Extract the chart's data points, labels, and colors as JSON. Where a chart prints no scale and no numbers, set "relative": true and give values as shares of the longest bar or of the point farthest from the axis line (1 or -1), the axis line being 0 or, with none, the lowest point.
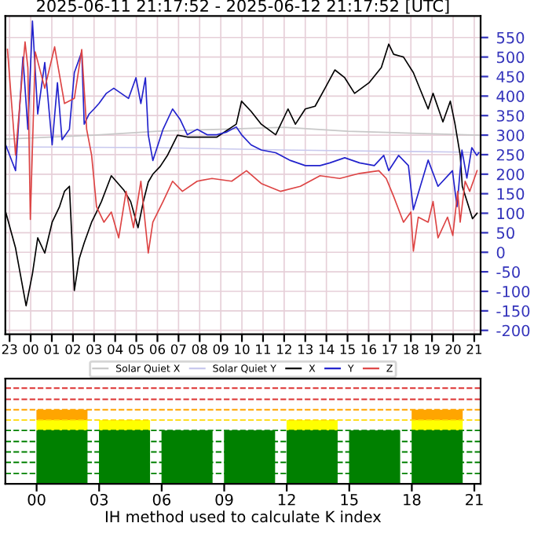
{
  "chart_data": [
    {
      "type": "line",
      "title": "2025-06-11 21:17:52 - 2025-06-12 21:17:52 [UTC]",
      "legend": "bottom",
      "grid": true,
      "xlim": [
        "2025-06-11T22:48",
        "2025-06-12T21:18"
      ],
      "ylim": [
        -210,
        605
      ],
      "xticks": [
        {
          "value": "2025-06-11T23:00",
          "label": "23"
        },
        {
          "value": "2025-06-12T00:00",
          "label": "00"
        },
        {
          "value": "2025-06-12T01:00",
          "label": "01"
        },
        {
          "value": "2025-06-12T02:00",
          "label": "02"
        },
        {
          "value": "2025-06-12T03:00",
          "label": "03"
        },
        {
          "value": "2025-06-12T04:00",
          "label": "04"
        },
        {
          "value": "2025-06-12T05:00",
          "label": "05"
        },
        {
          "value": "2025-06-12T06:00",
          "label": "06"
        },
        {
          "value": "2025-06-12T07:00",
          "label": "07"
        },
        {
          "value": "2025-06-12T08:00",
          "label": "08"
        },
        {
          "value": "2025-06-12T09:00",
          "label": "09"
        },
        {
          "value": "2025-06-12T10:00",
          "label": "10"
        },
        {
          "value": "2025-06-12T11:00",
          "label": "11"
        },
        {
          "value": "2025-06-12T12:00",
          "label": "12"
        },
        {
          "value": "2025-06-12T13:00",
          "label": "13"
        },
        {
          "value": "2025-06-12T14:00",
          "label": "14"
        },
        {
          "value": "2025-06-12T15:00",
          "label": "15"
        },
        {
          "value": "2025-06-12T16:00",
          "label": "16"
        },
        {
          "value": "2025-06-12T17:00",
          "label": "17"
        },
        {
          "value": "2025-06-12T18:00",
          "label": "18"
        },
        {
          "value": "2025-06-12T19:00",
          "label": "19"
        },
        {
          "value": "2025-06-12T20:00",
          "label": "20"
        },
        {
          "value": "2025-06-12T21:00",
          "label": "21"
        }
      ],
      "yticks": [
        -200,
        -150,
        -100,
        -50,
        0,
        50,
        100,
        150,
        200,
        250,
        300,
        350,
        400,
        450,
        500,
        550
      ],
      "series": [
        {
          "name": "Solar Quiet X",
          "color": "#c8c8c8",
          "x": [
            "2025-06-11T22:49",
            "2025-06-12T03:00",
            "2025-06-12T06:00",
            "2025-06-12T09:00",
            "2025-06-12T12:00",
            "2025-06-12T15:00",
            "2025-06-12T18:00",
            "2025-06-12T21:12"
          ],
          "values": [
            290,
            300,
            310,
            315,
            320,
            310,
            305,
            300
          ]
        },
        {
          "name": "Solar Quiet Y",
          "color": "#c8c8ee",
          "x": [
            "2025-06-11T22:49",
            "2025-06-12T06:00",
            "2025-06-12T12:00",
            "2025-06-12T18:00",
            "2025-06-12T21:12"
          ],
          "values": [
            270,
            268,
            262,
            258,
            256
          ]
        },
        {
          "name": "X",
          "color": "#000000",
          "x": [
            "2025-06-11T22:49",
            "2025-06-11T23:17",
            "2025-06-11T23:47",
            "2025-06-12T00:05",
            "2025-06-12T00:20",
            "2025-06-12T00:40",
            "2025-06-12T01:01",
            "2025-06-12T01:22",
            "2025-06-12T01:36",
            "2025-06-12T01:50",
            "2025-06-12T02:04",
            "2025-06-12T02:18",
            "2025-06-12T02:32",
            "2025-06-12T02:53",
            "2025-06-12T03:07",
            "2025-06-12T03:21",
            "2025-06-12T03:49",
            "2025-06-12T04:24",
            "2025-06-12T04:44",
            "2025-06-12T05:05",
            "2025-06-12T05:20",
            "2025-06-12T05:34",
            "2025-06-12T05:47",
            "2025-06-12T06:08",
            "2025-06-12T06:29",
            "2025-06-12T06:57",
            "2025-06-12T07:25",
            "2025-06-12T08:07",
            "2025-06-12T08:49",
            "2025-06-12T09:44",
            "2025-06-12T09:59",
            "2025-06-12T10:26",
            "2025-06-12T10:55",
            "2025-06-12T11:36",
            "2025-06-12T12:11",
            "2025-06-12T12:32",
            "2025-06-12T13:00",
            "2025-06-12T13:28",
            "2025-06-12T13:56",
            "2025-06-12T14:24",
            "2025-06-12T14:52",
            "2025-06-12T15:20",
            "2025-06-12T16:01",
            "2025-06-12T16:36",
            "2025-06-12T16:57",
            "2025-06-12T17:11",
            "2025-06-12T17:39",
            "2025-06-12T18:07",
            "2025-06-12T18:49",
            "2025-06-12T19:03",
            "2025-06-12T19:31",
            "2025-06-12T19:52",
            "2025-06-12T20:05",
            "2025-06-12T20:20",
            "2025-06-12T20:26",
            "2025-06-12T20:55",
            "2025-06-12T21:08"
          ],
          "values": [
            103,
            11,
            -137,
            -55,
            37,
            -2,
            77,
            117,
            156,
            169,
            -98,
            -16,
            24,
            77,
            103,
            130,
            196,
            160,
            130,
            63,
            130,
            180,
            200,
            220,
            249,
            300,
            295,
            295,
            295,
            328,
            387,
            361,
            328,
            301,
            367,
            328,
            367,
            374,
            420,
            467,
            447,
            407,
            434,
            473,
            533,
            507,
            500,
            460,
            367,
            407,
            334,
            387,
            330,
            249,
            169,
            86,
            100
          ]
        },
        {
          "name": "Y",
          "color": "#2222cc",
          "x": [
            "2025-06-11T22:49",
            "2025-06-11T23:17",
            "2025-06-11T23:38",
            "2025-06-11T23:52",
            "2025-06-12T00:05",
            "2025-06-12T00:20",
            "2025-06-12T00:40",
            "2025-06-12T01:01",
            "2025-06-12T01:16",
            "2025-06-12T01:29",
            "2025-06-12T01:50",
            "2025-06-12T02:04",
            "2025-06-12T02:25",
            "2025-06-12T02:32",
            "2025-06-12T02:46",
            "2025-06-12T03:00",
            "2025-06-12T03:14",
            "2025-06-12T03:35",
            "2025-06-12T03:56",
            "2025-06-12T04:17",
            "2025-06-12T04:38",
            "2025-06-12T04:59",
            "2025-06-12T05:13",
            "2025-06-12T05:26",
            "2025-06-12T05:34",
            "2025-06-12T05:47",
            "2025-06-12T06:16",
            "2025-06-12T06:43",
            "2025-06-12T07:04",
            "2025-06-12T07:25",
            "2025-06-12T07:53",
            "2025-06-12T08:21",
            "2025-06-12T08:49",
            "2025-06-12T09:17",
            "2025-06-12T09:44",
            "2025-06-12T09:59",
            "2025-06-12T10:26",
            "2025-06-12T10:55",
            "2025-06-12T11:36",
            "2025-06-12T12:18",
            "2025-06-12T13:00",
            "2025-06-12T13:42",
            "2025-06-12T14:10",
            "2025-06-12T14:52",
            "2025-06-12T15:34",
            "2025-06-12T16:16",
            "2025-06-12T16:43",
            "2025-06-12T16:57",
            "2025-06-12T17:25",
            "2025-06-12T17:53",
            "2025-06-12T18:07",
            "2025-06-12T18:49",
            "2025-06-12T19:17",
            "2025-06-12T19:58",
            "2025-06-12T20:11",
            "2025-06-12T20:25",
            "2025-06-12T20:39",
            "2025-06-12T20:53",
            "2025-06-12T21:07",
            "2025-06-12T21:13"
          ],
          "values": [
            275,
            209,
            500,
            315,
            592,
            354,
            486,
            275,
            434,
            288,
            315,
            460,
            513,
            328,
            354,
            367,
            381,
            407,
            420,
            407,
            394,
            447,
            381,
            447,
            301,
            235,
            315,
            367,
            341,
            301,
            315,
            301,
            301,
            308,
            321,
            301,
            275,
            262,
            255,
            235,
            222,
            222,
            229,
            242,
            229,
            222,
            248,
            209,
            248,
            222,
            109,
            236,
            169,
            209,
            117,
            262,
            190,
            268,
            248,
            255
          ]
        },
        {
          "name": "Z",
          "color": "#dd4444",
          "x": [
            "2025-06-11T22:54",
            "2025-06-11T23:17",
            "2025-06-11T23:44",
            "2025-06-11T23:52",
            "2025-06-11T23:59",
            "2025-06-12T00:13",
            "2025-06-12T00:40",
            "2025-06-12T01:08",
            "2025-06-12T01:36",
            "2025-06-12T02:04",
            "2025-06-12T02:25",
            "2025-06-12T02:39",
            "2025-06-12T02:53",
            "2025-06-12T03:07",
            "2025-06-12T03:28",
            "2025-06-12T03:49",
            "2025-06-12T04:10",
            "2025-06-12T04:31",
            "2025-06-12T04:52",
            "2025-06-12T05:13",
            "2025-06-12T05:34",
            "2025-06-12T05:47",
            "2025-06-12T06:16",
            "2025-06-12T06:43",
            "2025-06-12T07:11",
            "2025-06-12T07:53",
            "2025-06-12T08:35",
            "2025-06-12T09:31",
            "2025-06-12T10:13",
            "2025-06-12T10:55",
            "2025-06-12T11:50",
            "2025-06-12T12:46",
            "2025-06-12T13:42",
            "2025-06-12T14:38",
            "2025-06-12T15:34",
            "2025-06-12T16:29",
            "2025-06-12T16:50",
            "2025-06-12T17:11",
            "2025-06-12T17:39",
            "2025-06-12T18:00",
            "2025-06-12T18:07",
            "2025-06-12T18:21",
            "2025-06-12T18:49",
            "2025-06-12T19:03",
            "2025-06-12T19:17",
            "2025-06-12T19:44",
            "2025-06-12T19:59",
            "2025-06-12T20:13",
            "2025-06-12T20:20",
            "2025-06-12T20:34",
            "2025-06-12T20:47",
            "2025-06-12T21:08"
          ],
          "values": [
            520,
            249,
            539,
            473,
            84,
            513,
            420,
            526,
            381,
            394,
            519,
            315,
            249,
            117,
            77,
            103,
            37,
            156,
            63,
            182,
            -2,
            77,
            130,
            182,
            156,
            182,
            189,
            182,
            209,
            176,
            156,
            169,
            196,
            189,
            202,
            209,
            189,
            143,
            77,
            103,
            3,
            90,
            77,
            130,
            37,
            90,
            43,
            156,
            77,
            182,
            156,
            209
          ]
        }
      ]
    },
    {
      "type": "bar",
      "stacked": true,
      "relative": true,
      "tick_labels": "x",
      "xlabel": "IH method used to calculate K index",
      "xlim": [
        "2025-06-11T22:30",
        "2025-06-12T21:18"
      ],
      "xticks": [
        {
          "value": "2025-06-12T00:00",
          "label": "00"
        },
        {
          "value": "2025-06-12T03:00",
          "label": "03"
        },
        {
          "value": "2025-06-12T06:00",
          "label": "06"
        },
        {
          "value": "2025-06-12T09:00",
          "label": "09"
        },
        {
          "value": "2025-06-12T12:00",
          "label": "12"
        },
        {
          "value": "2025-06-12T15:00",
          "label": "15"
        },
        {
          "value": "2025-06-12T18:00",
          "label": "18"
        },
        {
          "value": "2025-06-12T21:00",
          "label": "21"
        }
      ],
      "x": [
        "2025-06-12T01:13",
        "2025-06-12T04:13",
        "2025-06-12T07:13",
        "2025-06-12T10:13",
        "2025-06-12T13:13",
        "2025-06-12T16:13",
        "2025-06-12T19:13"
      ],
      "series": [
        {
          "color": "#008000",
          "values": [
            0.72,
            0.72,
            0.72,
            0.72,
            0.72,
            0.72,
            0.72
          ]
        },
        {
          "color": "#ffff00",
          "values": [
            0.14,
            0.14,
            0,
            0,
            0.14,
            0,
            0.14
          ]
        },
        {
          "color": "#ffa500",
          "values": [
            0.14,
            0,
            0,
            0,
            0,
            0,
            0.14
          ]
        }
      ],
      "ref_lines": [
        {
          "axis": "y",
          "value": 0.14,
          "color": "#008000",
          "line_style": "dashed"
        },
        {
          "axis": "y",
          "value": 0.29,
          "color": "#008000",
          "line_style": "dashed"
        },
        {
          "axis": "y",
          "value": 0.43,
          "color": "#008000",
          "line_style": "dashed"
        },
        {
          "axis": "y",
          "value": 0.57,
          "color": "#008000",
          "line_style": "dashed"
        },
        {
          "axis": "y",
          "value": 0.72,
          "color": "#008000",
          "line_style": "dashed"
        },
        {
          "axis": "y",
          "value": 0.86,
          "color": "#ffd700",
          "line_style": "dashed"
        },
        {
          "axis": "y",
          "value": 1.0,
          "color": "#ffa500",
          "line_style": "dashed"
        },
        {
          "axis": "y",
          "value": 1.14,
          "color": "#dd3333",
          "line_style": "dashed"
        },
        {
          "axis": "y",
          "value": 1.29,
          "color": "#dd3333",
          "line_style": "dashed"
        }
      ]
    }
  ]
}
